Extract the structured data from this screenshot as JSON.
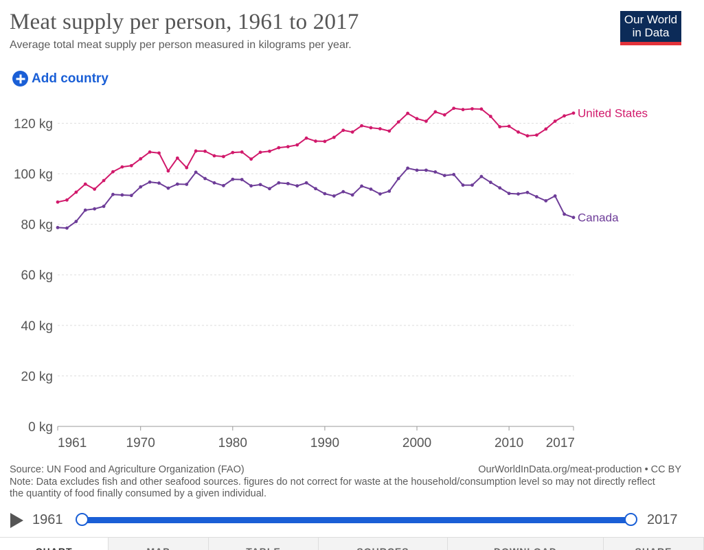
{
  "header": {
    "title": "Meat supply per person, 1961 to 2017",
    "subtitle": "Average total meat supply per person measured in kilograms per year.",
    "logo_line1": "Our World",
    "logo_line2": "in Data"
  },
  "controls": {
    "add_country_label": "Add country"
  },
  "colors": {
    "united_states": "#d1196b",
    "canada": "#6d3c98",
    "accent": "#1a5fd6",
    "logo_bg": "#0c2b58",
    "logo_bar": "#e3323a"
  },
  "chart_data": {
    "type": "line",
    "title": "Meat supply per person, 1961 to 2017",
    "subtitle": "Average total meat supply per person measured in kilograms per year.",
    "ylim": [
      0,
      128
    ],
    "y_ticks": [
      0,
      20,
      40,
      60,
      80,
      100,
      120
    ],
    "y_tick_labels": [
      "0 kg",
      "20 kg",
      "40 kg",
      "60 kg",
      "80 kg",
      "100 kg",
      "120 kg"
    ],
    "x_ticks": [
      1961,
      1970,
      1980,
      1990,
      2000,
      2010,
      2017
    ],
    "x_tick_labels": [
      "1961",
      "1970",
      "1980",
      "1990",
      "2000",
      "2010",
      "2017"
    ],
    "x": [
      1961,
      1962,
      1963,
      1964,
      1965,
      1966,
      1967,
      1968,
      1969,
      1970,
      1971,
      1972,
      1973,
      1974,
      1975,
      1976,
      1977,
      1978,
      1979,
      1980,
      1981,
      1982,
      1983,
      1984,
      1985,
      1986,
      1987,
      1988,
      1989,
      1990,
      1991,
      1992,
      1993,
      1994,
      1995,
      1996,
      1997,
      1998,
      1999,
      2000,
      2001,
      2002,
      2003,
      2004,
      2005,
      2006,
      2007,
      2008,
      2009,
      2010,
      2011,
      2012,
      2013,
      2014,
      2015,
      2016,
      2017
    ],
    "grid": "horizontal dashed",
    "legend": "inline labels at line ends",
    "series": [
      {
        "name": "United States",
        "values": [
          88.8,
          89.6,
          92.7,
          95.9,
          93.9,
          97.3,
          100.8,
          102.7,
          103.2,
          105.9,
          108.6,
          108.2,
          101.1,
          106.2,
          102.4,
          109.0,
          108.9,
          107.1,
          106.8,
          108.4,
          108.6,
          105.8,
          108.5,
          108.9,
          110.3,
          110.7,
          111.4,
          114.1,
          112.9,
          112.8,
          114.4,
          117.2,
          116.5,
          119.0,
          118.2,
          117.8,
          116.9,
          120.5,
          123.9,
          121.8,
          120.8,
          124.5,
          123.3,
          125.9,
          125.4,
          125.7,
          125.6,
          122.7,
          118.6,
          118.8,
          116.5,
          115.0,
          115.3,
          117.7,
          120.8,
          122.9,
          124.0
        ]
      },
      {
        "name": "Canada",
        "values": [
          78.7,
          78.5,
          81.1,
          85.6,
          86.1,
          87.1,
          91.8,
          91.6,
          91.4,
          94.8,
          96.7,
          96.3,
          94.3,
          95.9,
          95.8,
          100.6,
          98.1,
          96.4,
          95.3,
          97.8,
          97.7,
          95.2,
          95.7,
          94.1,
          96.4,
          96.1,
          95.2,
          96.4,
          94.1,
          92.1,
          91.2,
          92.9,
          91.6,
          95.1,
          93.9,
          92.0,
          93.1,
          98.1,
          102.2,
          101.4,
          101.4,
          100.7,
          99.3,
          99.7,
          95.5,
          95.5,
          98.9,
          96.6,
          94.4,
          92.2,
          92.0,
          92.6,
          90.9,
          89.3,
          91.2,
          84.0,
          82.7
        ]
      }
    ]
  },
  "footer": {
    "source": "Source: UN Food and Agriculture Organization (FAO)",
    "credit": "OurWorldInData.org/meat-production • CC BY",
    "note": "Note: Data excludes fish and other seafood sources. figures do not correct for waste at the household/consumption level so may not directly reflect the quantity of food finally consumed by a given individual."
  },
  "timeline": {
    "start_label": "1961",
    "end_label": "2017"
  },
  "tabs": [
    {
      "label": "CHART",
      "active": true
    },
    {
      "label": "MAP",
      "active": false
    },
    {
      "label": "TABLE",
      "active": false
    },
    {
      "label": "SOURCES",
      "active": false
    },
    {
      "label": "DOWNLOAD",
      "active": false
    },
    {
      "label": "SHARE",
      "active": false
    }
  ]
}
